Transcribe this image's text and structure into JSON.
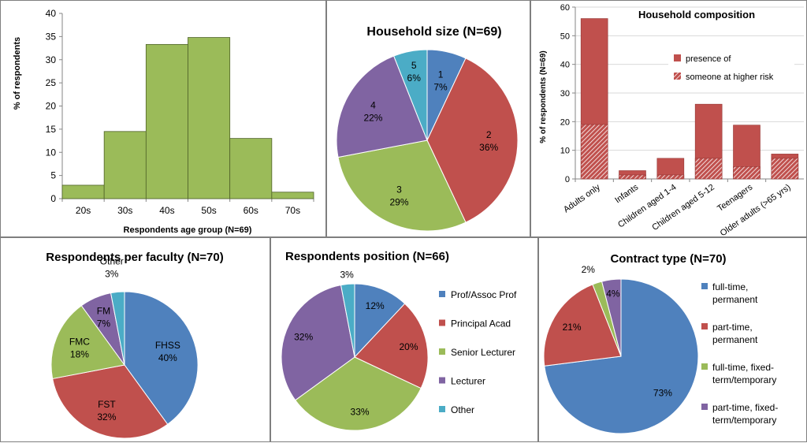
{
  "colors": {
    "green": "#9bbb59",
    "blue": "#4f81bd",
    "red": "#c0504d",
    "purple": "#8064a2",
    "teal": "#4bacc6"
  },
  "chart_data": [
    {
      "type": "bar",
      "title": "",
      "xlabel": "Respondents age group (N=69)",
      "ylabel": "% of respondents",
      "categories": [
        "20s",
        "30s",
        "40s",
        "50s",
        "60s",
        "70s"
      ],
      "values": [
        2.9,
        14.5,
        33.3,
        34.8,
        13.0,
        1.4
      ],
      "ylim": [
        0,
        40
      ],
      "yticks": [
        "0",
        "5",
        "10",
        "15",
        "20",
        "25",
        "30",
        "35",
        "40"
      ],
      "grid": false
    },
    {
      "type": "pie",
      "title": "Household size (N=69)",
      "labels": [
        "1",
        "2",
        "3",
        "4",
        "5"
      ],
      "values": [
        7,
        36,
        29,
        22,
        6
      ],
      "value_labels": [
        "7%",
        "36%",
        "29%",
        "22%",
        "6%"
      ]
    },
    {
      "type": "bar",
      "title": "Household composition",
      "ylabel": "% of respondents (N=69)",
      "categories": [
        "Adults only",
        "Infants",
        "Children aged 1-4",
        "Children aged 5-12",
        "Teenagers",
        "Older adults (>65 yrs)"
      ],
      "series": [
        {
          "name": "presence of",
          "values": [
            56,
            2.9,
            7.2,
            26.1,
            18.8,
            8.7
          ]
        },
        {
          "name": "someone at higher risk",
          "values": [
            19.0,
            1.4,
            1.4,
            7.2,
            4.3,
            7.2
          ]
        }
      ],
      "ylim": [
        0,
        60
      ],
      "yticks": [
        "0",
        "10",
        "20",
        "30",
        "40",
        "50",
        "60"
      ],
      "grid": true,
      "legend_position": "right"
    },
    {
      "type": "pie",
      "title": "Respondents per faculty (N=70)",
      "labels": [
        "FHSS",
        "FST",
        "FMC",
        "FM",
        "Other"
      ],
      "values": [
        40,
        32,
        18,
        7,
        3
      ],
      "value_labels": [
        "40%",
        "32%",
        "18%",
        "7%",
        "3%"
      ]
    },
    {
      "type": "pie",
      "title": "Respondents position (N=66)",
      "labels": [
        "Prof/Assoc Prof",
        "Principal Acad",
        "Senior Lecturer",
        "Lecturer",
        "Other"
      ],
      "values": [
        12,
        20,
        33,
        32,
        3
      ],
      "value_labels": [
        "12%",
        "20%",
        "33%",
        "32%",
        "3%"
      ],
      "legend_position": "right"
    },
    {
      "type": "pie",
      "title": "Contract type (N=70)",
      "labels": [
        "full-time, permanent",
        "part-time, permanent",
        "full-time, fixed-term/temporary",
        "part-time, fixed-term/temporary"
      ],
      "legend_lines": [
        [
          "full-time,",
          "permanent"
        ],
        [
          "part-time,",
          "permanent"
        ],
        [
          "full-time, fixed-",
          "term/temporary"
        ],
        [
          "part-time, fixed-",
          "term/temporary"
        ]
      ],
      "values": [
        73,
        21,
        2,
        4
      ],
      "value_labels": [
        "73%",
        "21%",
        "2%",
        "4%"
      ],
      "legend_position": "right"
    }
  ]
}
